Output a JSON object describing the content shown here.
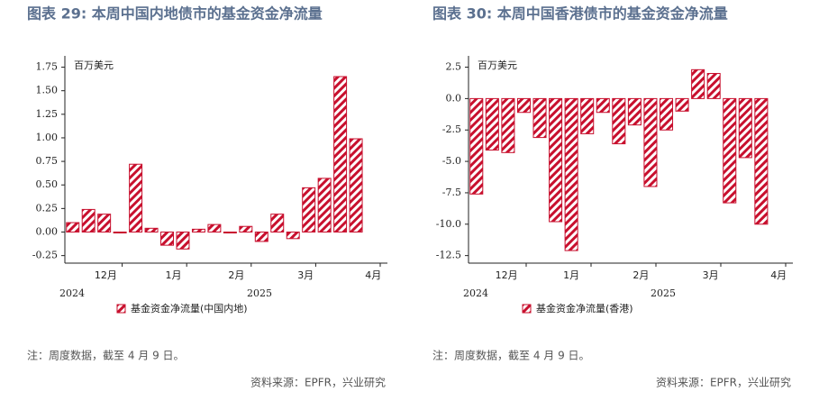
{
  "chart_data": [
    {
      "type": "bar",
      "title": "图表 29: 本周中国内地债市的基金资金净流量",
      "unit": "百万美元",
      "series": [
        {
          "name": "基金资金净流量(中国内地)",
          "color": "#c8102e",
          "values": [
            0.1,
            0.24,
            0.19,
            -0.01,
            0.72,
            0.04,
            -0.14,
            -0.18,
            0.03,
            0.08,
            -0.01,
            0.06,
            -0.1,
            0.19,
            -0.07,
            0.47,
            0.57,
            1.65,
            0.99
          ]
        }
      ],
      "ylim": [
        -0.33,
        1.87
      ],
      "yticks": [
        1.75,
        {
          "value": 1.5,
          "label": "1.50"
        },
        1.25,
        {
          "value": 1,
          "label": "1.00"
        },
        0.75,
        {
          "value": 0.5,
          "label": "0.50"
        },
        0.25,
        {
          "value": 0,
          "label": "0.00"
        },
        -0.25
      ],
      "xlim": [
        0,
        20.5
      ],
      "xticks": [
        {
          "value": 2.6,
          "label": "12月"
        },
        {
          "value": 6.9,
          "label": "1月"
        },
        {
          "value": 10.9,
          "label": "2月"
        },
        {
          "value": 15.3,
          "label": "3月"
        },
        {
          "value": 19.6,
          "label": "4月"
        }
      ],
      "year_labels": [
        "2024",
        "2025"
      ],
      "note": "注：周度数据，截至 4 月 9 日。",
      "source": "资料来源：EPFR，兴业研究"
    },
    {
      "type": "bar",
      "title": "图表 30: 本周中国香港债市的基金资金净流量",
      "unit": "百万美元",
      "series": [
        {
          "name": "基金资金净流量(香港)",
          "color": "#c8102e",
          "values": [
            -7.6,
            -4.1,
            -4.3,
            -1.1,
            -3.1,
            -9.8,
            -12.1,
            -2.8,
            -1.1,
            -3.6,
            -2.1,
            -7.0,
            -2.5,
            -1.0,
            2.3,
            2.0,
            -8.3,
            -4.7,
            -10.0
          ]
        }
      ],
      "ylim": [
        -13.1,
        3.4
      ],
      "yticks": [
        2.5,
        {
          "value": 0,
          "label": "0.0"
        },
        -2.5,
        {
          "value": -5,
          "label": "-5.0"
        },
        -7.5,
        {
          "value": -10,
          "label": "-10.0"
        },
        -12.5
      ],
      "xlim": [
        0,
        20.5
      ],
      "xticks": [
        {
          "value": 2.4,
          "label": "12月"
        },
        {
          "value": 6.5,
          "label": "1月"
        },
        {
          "value": 10.9,
          "label": "2月"
        },
        {
          "value": 15.3,
          "label": "3月"
        },
        {
          "value": 19.6,
          "label": "4月"
        }
      ],
      "year_labels": [
        "2024",
        "2025"
      ],
      "note": "注：周度数据，截至 4 月 9 日。",
      "source": "资料来源：EPFR，兴业研究"
    }
  ]
}
